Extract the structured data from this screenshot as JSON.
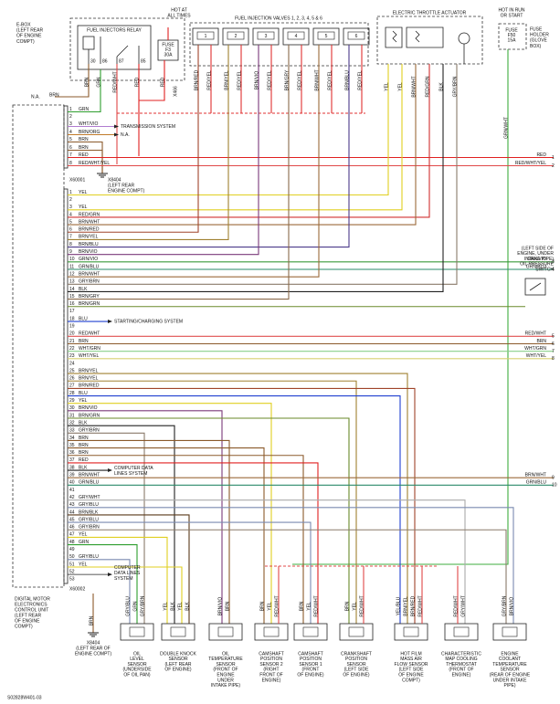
{
  "diagram_id": "S02828W401-03",
  "top": {
    "ebox": [
      "E-BOX",
      "(LEFT REAR",
      "OF ENGINE",
      "COMPT)"
    ],
    "relay_title": "FUEL INJECTORS RELAY",
    "relay_pins": [
      "30",
      "86",
      "87",
      "85"
    ],
    "hot_at_all_times": [
      "HOT AT",
      "ALL TIMES"
    ],
    "fuse_f3": [
      "FUSE",
      "F3",
      "30A"
    ],
    "x466": "X466",
    "relay_wires": [
      "BRN",
      "GRN",
      "RED/WHT",
      "RED",
      "RED"
    ],
    "injectors_title": "FUEL INJECTION VALVES 1, 2, 3, 4, 5 & 6",
    "injector_numbers": [
      "1",
      "2",
      "3",
      "4",
      "5",
      "6"
    ],
    "injector_wires": [
      "BRN/RED",
      "RED/YEL",
      "BRN/YEL",
      "RED/YEL",
      "BRN/VIO",
      "RED/YEL",
      "BRN/GRY",
      "RED/YEL",
      "BRN/WHT",
      "RED/YEL",
      "BRN/BLU",
      "RED/YEL"
    ],
    "throttle_title": "ELECTRIC THROTTLE ACTUATOR",
    "throttle_wires": [
      "YEL",
      "YEL",
      "BRN/WHT",
      "RED/GRN",
      "BLK",
      "GRY/BRN"
    ],
    "hot_in_run": [
      "HOT IN RUN",
      "OR START"
    ],
    "fuse_f50": [
      "FUSE",
      "F50",
      "15A"
    ],
    "fuse_holder": [
      "FUSE",
      "HOLDER",
      "(GLOVE",
      "BOX)"
    ],
    "hot_in_run_wire": "GRN/WHT"
  },
  "ecu": {
    "name": [
      "DIGITAL MOTOR",
      "ELECTRONICS",
      "CONTROL UNIT",
      "(LEFT REAR",
      "OF ENGINE",
      "COMPT)"
    ],
    "na_label": "N.A.",
    "na_wire": "BRN"
  },
  "connector_a": {
    "name": "X60001",
    "pins": [
      {
        "pin": "1",
        "wire": "GRN",
        "color": "#2e9e2e"
      },
      {
        "pin": "2"
      },
      {
        "pin": "3",
        "wire": "WHT/VIO",
        "color": "#b07cd0"
      },
      {
        "pin": "4",
        "wire": "BRN/ORG",
        "color": "#c07a2a"
      },
      {
        "pin": "5",
        "wire": "BRN",
        "color": "#8b5a2b"
      },
      {
        "pin": "6",
        "wire": "BRN",
        "color": "#8b5a2b"
      },
      {
        "pin": "7",
        "wire": "RED",
        "color": "#e02020"
      },
      {
        "pin": "8",
        "wire": "RED/WHT/YEL",
        "color": "#e04848"
      }
    ]
  },
  "connector_b": {
    "name": "X60002",
    "pins": [
      {
        "pin": "1",
        "wire": "YEL",
        "color": "#e0cf20"
      },
      {
        "pin": "2"
      },
      {
        "pin": "3",
        "wire": "YEL",
        "color": "#e0cf20"
      },
      {
        "pin": "4",
        "wire": "RED/GRN",
        "color": "#d03030"
      },
      {
        "pin": "5",
        "wire": "BRN/WHT",
        "color": "#9b6a3a"
      },
      {
        "pin": "6",
        "wire": "BRN/RED",
        "color": "#a0442a"
      },
      {
        "pin": "7",
        "wire": "BRN/YEL",
        "color": "#a08030"
      },
      {
        "pin": "8",
        "wire": "BRN/BLU",
        "color": "#4b3a8a"
      },
      {
        "pin": "9",
        "wire": "BRN/VIO",
        "color": "#7b3a7a"
      },
      {
        "pin": "10",
        "wire": "GRN/VIO",
        "color": "#3a9a3a"
      },
      {
        "pin": "11",
        "wire": "GRN/BLU",
        "color": "#2a8a6a"
      },
      {
        "pin": "12",
        "wire": "BRN/WHT",
        "color": "#9b6a3a"
      },
      {
        "pin": "13",
        "wire": "GRY/BRN",
        "color": "#8a7a6a"
      },
      {
        "pin": "14",
        "wire": "BLK",
        "color": "#222222"
      },
      {
        "pin": "15",
        "wire": "BRN/GRY",
        "color": "#8a6a4a"
      },
      {
        "pin": "16",
        "wire": "BRN/GRN",
        "color": "#6a8a2a"
      },
      {
        "pin": "17"
      },
      {
        "pin": "18",
        "wire": "BLU",
        "color": "#2040d0"
      },
      {
        "pin": "19"
      },
      {
        "pin": "20",
        "wire": "RED/WHT",
        "color": "#e05050"
      },
      {
        "pin": "21",
        "wire": "BRN",
        "color": "#8b5a2b"
      },
      {
        "pin": "22",
        "wire": "WHT/GRN",
        "color": "#8ad08a"
      },
      {
        "pin": "23",
        "wire": "WHT/YEL",
        "color": "#d8d070"
      },
      {
        "pin": "24"
      },
      {
        "pin": "25",
        "wire": "BRN/YEL",
        "color": "#a08030"
      },
      {
        "pin": "26",
        "wire": "BRN/YEL",
        "color": "#a08030"
      },
      {
        "pin": "27",
        "wire": "BRN/RED",
        "color": "#a0442a"
      },
      {
        "pin": "28",
        "wire": "BLU",
        "color": "#2040d0"
      },
      {
        "pin": "29",
        "wire": "YEL",
        "color": "#e0cf20"
      },
      {
        "pin": "30",
        "wire": "BRN/VIO",
        "color": "#7b3a7a"
      },
      {
        "pin": "31",
        "wire": "BRN/GRN",
        "color": "#6a8a2a"
      },
      {
        "pin": "32",
        "wire": "BLK",
        "color": "#222222"
      },
      {
        "pin": "33",
        "wire": "GRY/BRN",
        "color": "#8a7a6a"
      },
      {
        "pin": "34",
        "wire": "BRN",
        "color": "#8b5a2b"
      },
      {
        "pin": "35",
        "wire": "BRN",
        "color": "#8b5a2b"
      },
      {
        "pin": "36",
        "wire": "BRN",
        "color": "#8b5a2b"
      },
      {
        "pin": "37",
        "wire": "RED",
        "color": "#e02020"
      },
      {
        "pin": "38",
        "wire": "BLK",
        "color": "#222222"
      },
      {
        "pin": "39",
        "wire": "BRN/WHT",
        "color": "#9b6a3a"
      },
      {
        "pin": "40",
        "wire": "GRN/BLU",
        "color": "#2a8a6a"
      },
      {
        "pin": "41"
      },
      {
        "pin": "42",
        "wire": "GRY/WHT",
        "color": "#aaaaaa"
      },
      {
        "pin": "43",
        "wire": "GRY/BLU",
        "color": "#7a8ab0"
      },
      {
        "pin": "44",
        "wire": "BRN/BLK",
        "color": "#5a3a1a"
      },
      {
        "pin": "45",
        "wire": "GRY/BLU",
        "color": "#7a8ab0"
      },
      {
        "pin": "46",
        "wire": "GRY/BRN",
        "color": "#8a7a6a"
      },
      {
        "pin": "47",
        "wire": "YEL",
        "color": "#e0cf20"
      },
      {
        "pin": "48",
        "wire": "GRN",
        "color": "#2e9e2e"
      },
      {
        "pin": "49"
      },
      {
        "pin": "50",
        "wire": "GRY/BLU",
        "color": "#7a8ab0"
      },
      {
        "pin": "51",
        "wire": "YEL",
        "color": "#e0cf20"
      },
      {
        "pin": "52"
      },
      {
        "pin": "53"
      }
    ]
  },
  "references": {
    "transmission": [
      "TRANSMISSION SYSTEM"
    ],
    "na": "N.A.",
    "ground_a": [
      "X8404",
      "(LEFT REAR",
      "ENGINE COMPT)"
    ],
    "starting": "STARTING/CHARGING SYSTEM",
    "computer_data_1": [
      "COMPUTER DATA",
      "LINES SYSTEM"
    ],
    "computer_data_2": [
      "COMPUTER",
      "DATA LINES",
      "SYSTEM"
    ],
    "ground_b": [
      "X8404",
      "(LEFT REAR OF",
      "ENGINE COMPT)"
    ],
    "ground_b_wire": "BRN"
  },
  "right_side": [
    {
      "wire": "RED",
      "number": "1"
    },
    {
      "wire": "RED/WHT/YEL",
      "number": "2"
    },
    {
      "wire": "GRN/VIO",
      "number": "3"
    },
    {
      "wire": "GRN/BLU",
      "number": "4"
    },
    {
      "wire": "RED/WHT",
      "number": "5"
    },
    {
      "wire": "BRN",
      "number": "6"
    },
    {
      "wire": "WHT/GRN",
      "number": "7"
    },
    {
      "wire": "WHT/YEL",
      "number": "8"
    },
    {
      "wire": "BRN/WHT",
      "number": "9"
    },
    {
      "wire": "GRN/BLU",
      "number": "10"
    }
  ],
  "oil_pressure_switch": [
    "(LEFT SIDE OF",
    "ENGINE, UNDER",
    "INTAKE PIPE)",
    "OIL PRESSURE",
    "SWITCH"
  ],
  "sensors": [
    {
      "lines": [
        "OIL",
        "LEVEL",
        "SENSOR",
        "(UNDERSIDE",
        "OF OIL PAN)"
      ],
      "wires": [
        "GRY/BLU",
        "GRN",
        "GRY/BRN"
      ]
    },
    {
      "lines": [
        "DOUBLE KNOCK",
        "SENSOR",
        "(LEFT REAR",
        "OF ENGINE)"
      ],
      "wires": [
        "YEL",
        "BLK",
        "YEL",
        "BLK"
      ]
    },
    {
      "lines": [
        "OIL",
        "TEMPERATURE",
        "SENSOR",
        "(FRONT OF",
        "ENGINE",
        "UNDER",
        "INTAKE PIPE)"
      ],
      "wires": [
        "BRN/VIO",
        "BRN"
      ]
    },
    {
      "lines": [
        "CAMSHAFT",
        "POSITION",
        "SENSOR 2",
        "(RIGHT",
        "FRONT OF",
        "ENGINE)"
      ],
      "wires": [
        "BRN",
        "YEL",
        "RED/WHT"
      ]
    },
    {
      "lines": [
        "CAMSHAFT",
        "POSITION",
        "SENSOR 1",
        "(FRONT",
        "OF ENGINE)"
      ],
      "wires": [
        "BRN",
        "YEL",
        "RED/WHT"
      ]
    },
    {
      "lines": [
        "CRANKSHAFT",
        "POSITION",
        "SENSOR",
        "(LEFT SIDE",
        "OF ENGINE)"
      ],
      "wires": [
        "BRN",
        "YEL",
        "RED/WHT"
      ]
    },
    {
      "lines": [
        "HOT FILM",
        "MASS AIR",
        "FLOW SENSOR",
        "(LEFT SIDE",
        "OF ENGINE",
        "COMPT)"
      ],
      "wires": [
        "YEL/BLU",
        "BRN/YEL",
        "BRN/RED",
        "RED/WHT"
      ]
    },
    {
      "lines": [
        "CHARACTERISTIC",
        "MAP COOLING",
        "THERMOSTAT",
        "(FRONT OF",
        "ENGINE)"
      ],
      "wires": [
        "RED/WHT",
        "GRY/WHT"
      ]
    },
    {
      "lines": [
        "ENGINE",
        "COOLANT",
        "TEMPERATURE",
        "SENSOR",
        "(REAR OF ENGINE",
        "UNDER INTAKE",
        "PIPE)"
      ],
      "wires": [
        "GRY/BRN",
        "BRN/VIO"
      ]
    }
  ]
}
